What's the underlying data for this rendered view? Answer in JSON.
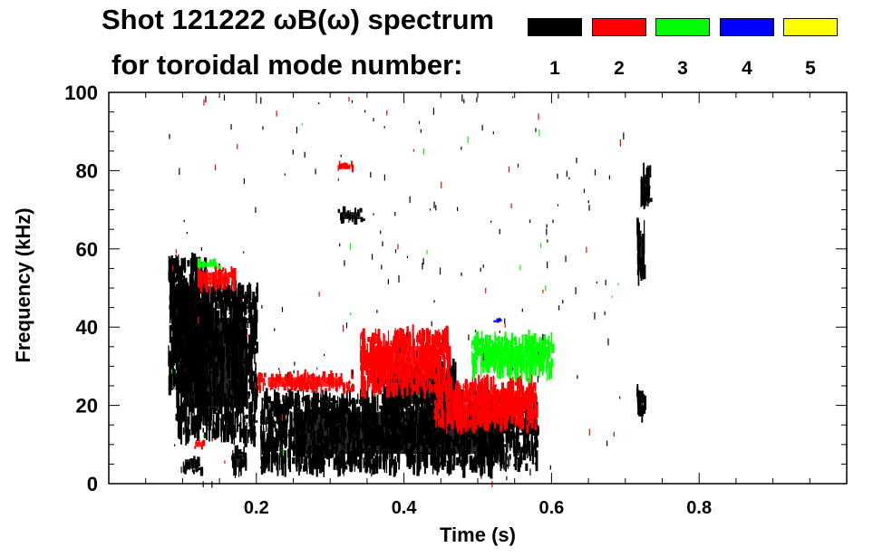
{
  "title_line1": "Shot 121222 ωB(ω) spectrum",
  "title_line2": "for toroidal mode number:",
  "legend": [
    {
      "label": "1",
      "color": "#000000"
    },
    {
      "label": "2",
      "color": "#ff0000"
    },
    {
      "label": "3",
      "color": "#00ff00"
    },
    {
      "label": "4",
      "color": "#0000ff"
    },
    {
      "label": "5",
      "color": "#ffff00"
    }
  ],
  "chart_data": {
    "type": "heatmap",
    "title": "Shot 121222 ωB(ω) spectrum",
    "xlabel": "Time (s)",
    "ylabel": "Frequency (kHz)",
    "xlim": [
      0.0,
      1.0
    ],
    "ylim": [
      0,
      100
    ],
    "xticks": [
      0.2,
      0.4,
      0.6,
      0.8
    ],
    "xtick_labels": [
      "0.2",
      "0.4",
      "0.6",
      "0.8"
    ],
    "yticks": [
      0,
      20,
      40,
      60,
      80,
      100
    ],
    "ytick_labels": [
      "0",
      "20",
      "40",
      "60",
      "80",
      "100"
    ],
    "legend_title": "toroidal mode number",
    "series": [
      {
        "name": "1",
        "color": "#000000",
        "features": [
          {
            "t0": 0.08,
            "t1": 0.13,
            "f0": 25,
            "f1": 57
          },
          {
            "t0": 0.09,
            "t1": 0.2,
            "f0": 12,
            "f1": 50
          },
          {
            "t0": 0.1,
            "t1": 0.125,
            "f0": 3,
            "f1": 7
          },
          {
            "t0": 0.165,
            "t1": 0.185,
            "f0": 3,
            "f1": 9
          },
          {
            "t0": 0.205,
            "t1": 0.58,
            "f0": 4,
            "f1": 22
          },
          {
            "t0": 0.37,
            "t1": 0.47,
            "f0": 18,
            "f1": 30
          },
          {
            "t0": 0.31,
            "t1": 0.345,
            "f0": 67,
            "f1": 70
          },
          {
            "t0": 0.715,
            "t1": 0.725,
            "f0": 52,
            "f1": 66
          },
          {
            "t0": 0.715,
            "t1": 0.725,
            "f0": 16,
            "f1": 24
          },
          {
            "t0": 0.72,
            "t1": 0.735,
            "f0": 72,
            "f1": 80
          }
        ]
      },
      {
        "name": "2",
        "color": "#ff0000",
        "features": [
          {
            "t0": 0.2,
            "t1": 0.33,
            "f0": 24,
            "f1": 28
          },
          {
            "t0": 0.34,
            "t1": 0.46,
            "f0": 24,
            "f1": 38
          },
          {
            "t0": 0.44,
            "t1": 0.58,
            "f0": 15,
            "f1": 26
          },
          {
            "t0": 0.31,
            "t1": 0.33,
            "f0": 80,
            "f1": 82
          },
          {
            "t0": 0.12,
            "t1": 0.17,
            "f0": 50,
            "f1": 55
          },
          {
            "t0": 0.115,
            "t1": 0.13,
            "f0": 9,
            "f1": 11
          }
        ]
      },
      {
        "name": "3",
        "color": "#00ff00",
        "features": [
          {
            "t0": 0.49,
            "t1": 0.6,
            "f0": 28,
            "f1": 37
          },
          {
            "t0": 0.12,
            "t1": 0.15,
            "f0": 55,
            "f1": 57
          }
        ]
      },
      {
        "name": "4",
        "color": "#0000ff",
        "features": [
          {
            "t0": 0.52,
            "t1": 0.53,
            "f0": 41,
            "f1": 42
          }
        ]
      },
      {
        "name": "5",
        "color": "#ffff00",
        "features": []
      }
    ]
  }
}
